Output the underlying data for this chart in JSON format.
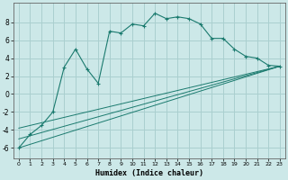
{
  "xlabel": "Humidex (Indice chaleur)",
  "background_color": "#cce8e8",
  "grid_color": "#aacfcf",
  "line_color": "#1a7a6e",
  "xlim": [
    -0.5,
    23.5
  ],
  "ylim": [
    -7.2,
    10.2
  ],
  "xticks": [
    0,
    1,
    2,
    3,
    4,
    5,
    6,
    7,
    8,
    9,
    10,
    11,
    12,
    13,
    14,
    15,
    16,
    17,
    18,
    19,
    20,
    21,
    22,
    23
  ],
  "yticks": [
    -6,
    -4,
    -2,
    0,
    2,
    4,
    6,
    8
  ],
  "curve1_x": [
    0,
    1,
    2,
    3,
    4,
    5,
    6,
    7,
    8,
    9,
    10,
    11,
    12,
    13,
    14,
    15,
    16,
    17,
    18,
    19,
    20,
    21,
    22,
    23
  ],
  "curve1_y": [
    -6.0,
    -4.5,
    -3.5,
    -2.0,
    3.0,
    5.0,
    2.8,
    1.2,
    7.0,
    6.8,
    7.8,
    7.6,
    9.0,
    8.4,
    8.6,
    8.4,
    7.8,
    6.2,
    6.2,
    5.0,
    4.2,
    4.0,
    3.2,
    3.1
  ],
  "line1_x": [
    0,
    23
  ],
  "line1_y": [
    -6.0,
    3.1
  ],
  "line2_x": [
    0,
    23
  ],
  "line2_y": [
    -5.0,
    3.1
  ],
  "line3_x": [
    0,
    23
  ],
  "line3_y": [
    -3.8,
    3.1
  ]
}
